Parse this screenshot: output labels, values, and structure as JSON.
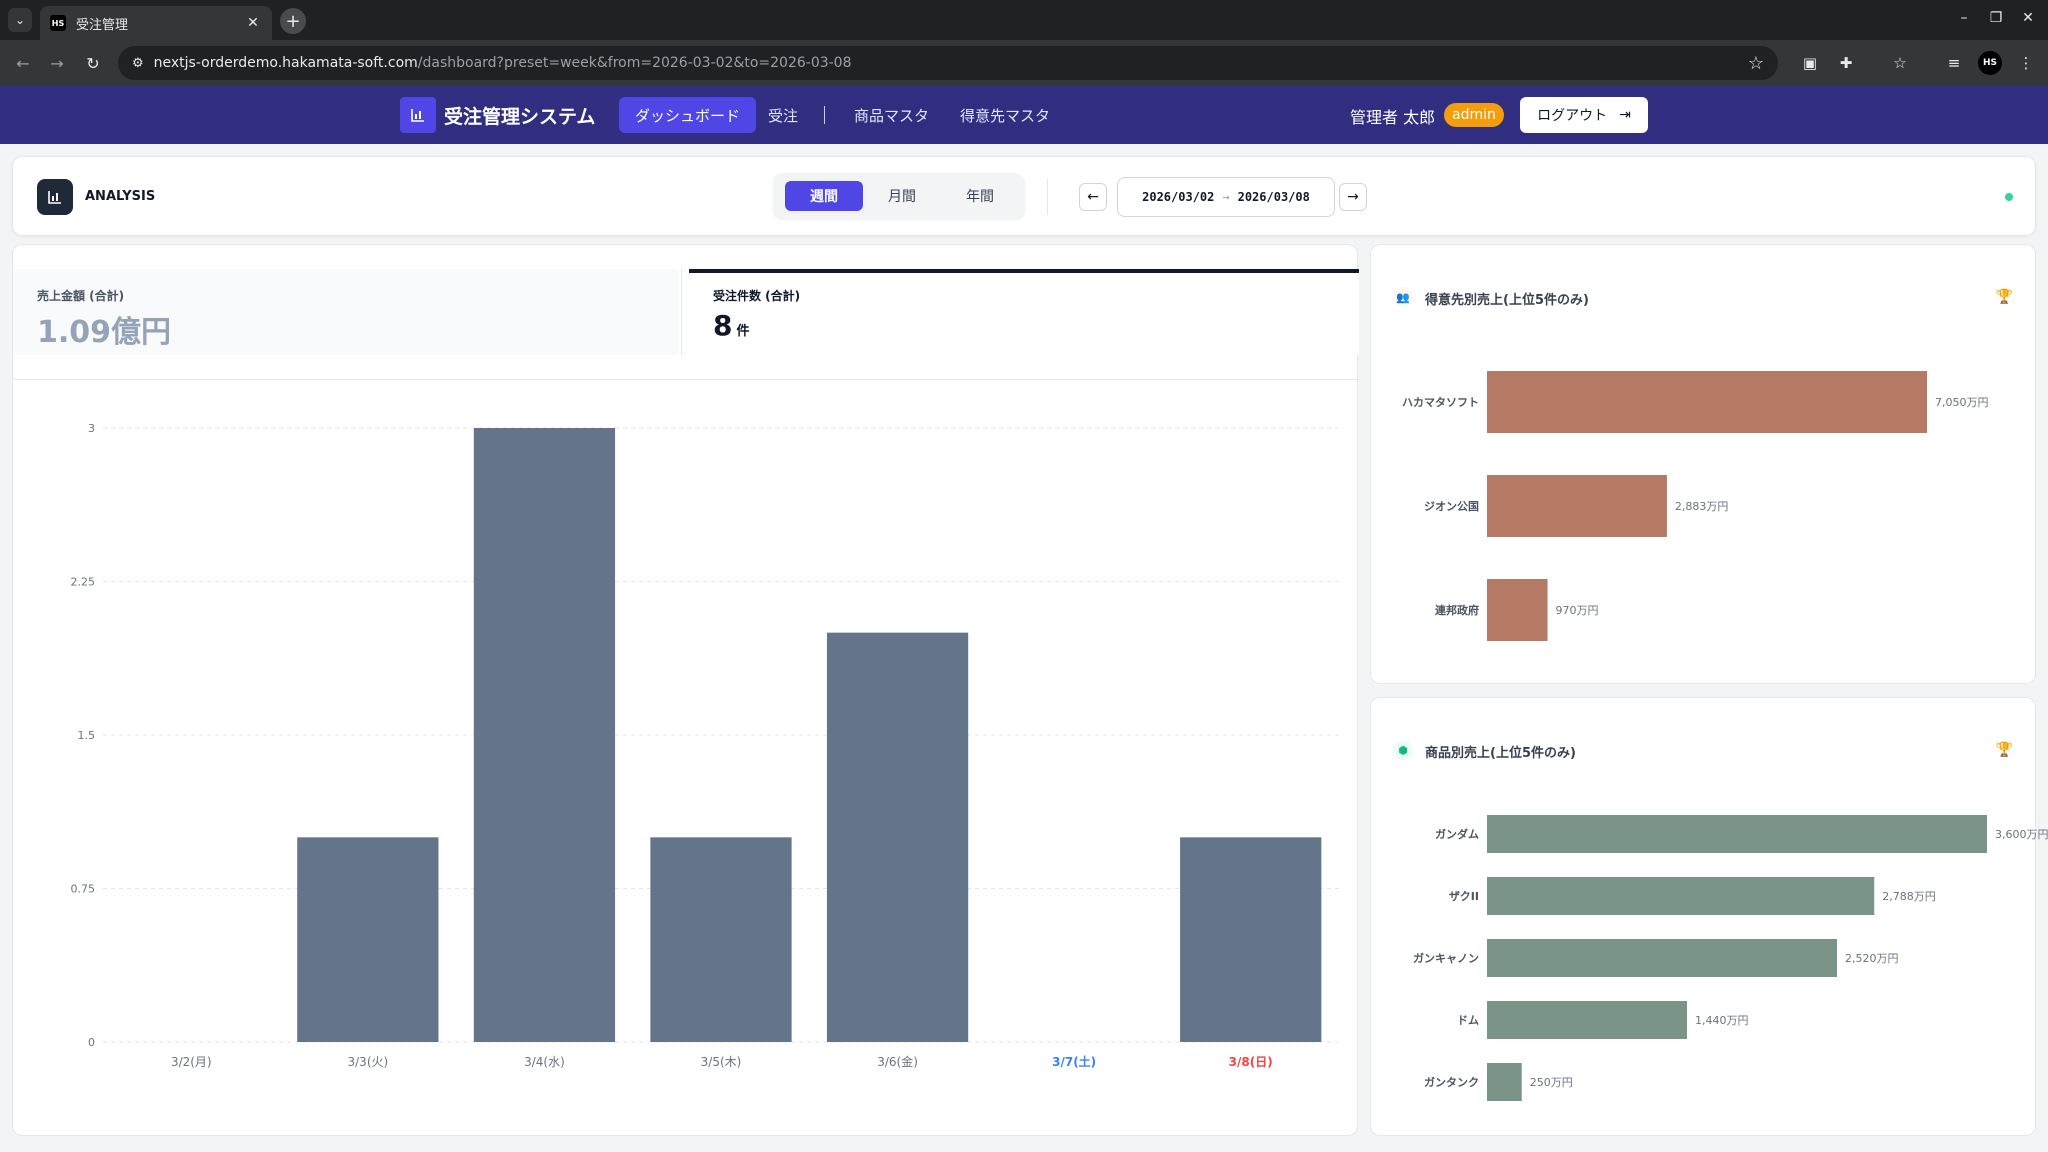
{
  "browser": {
    "tab_title": "受注管理",
    "favicon_text": "HS",
    "url_host": "nextjs-orderdemo.hakamata-soft.com",
    "url_path": "/dashboard?preset=week&from=2026-03-02&to=2026-03-08",
    "profile_text": "HS"
  },
  "app": {
    "title": "受注管理システム",
    "nav": [
      "ダッシュボード",
      "受注",
      "商品マスタ",
      "得意先マスタ"
    ],
    "user_name": "管理者 太郎",
    "role_badge": "admin",
    "logout_label": "ログアウト"
  },
  "analysis": {
    "label": "ANALYSIS",
    "periods": [
      "週間",
      "月間",
      "年間"
    ],
    "active_period": "週間",
    "date_from": "2026/03/02",
    "date_to": "2026/03/08"
  },
  "kpi": {
    "sales_label": "売上金額 (合計)",
    "sales_value": "1.09億円",
    "orders_label": "受注件数 (合計)",
    "orders_value": "8",
    "orders_unit": "件"
  },
  "customer_card": {
    "title": "得意先別売上(上位5件のみ)"
  },
  "product_card": {
    "title": "商品別売上(上位5件のみ)"
  },
  "chart_data": [
    {
      "type": "bar",
      "categories": [
        "3/2(月)",
        "3/3(火)",
        "3/4(水)",
        "3/5(木)",
        "3/6(金)",
        "3/7(土)",
        "3/8(日)"
      ],
      "values": [
        0,
        1,
        3,
        1,
        2,
        0,
        1
      ],
      "yticks": [
        "0",
        "0.75",
        "1.5",
        "2.25",
        "3"
      ],
      "ylim": [
        0,
        3
      ],
      "bar_color": "#64748b",
      "weekend_colors": {
        "3/7(土)": "#3b82f6",
        "3/8(日)": "#ef4444"
      },
      "grid": true
    },
    {
      "type": "bar",
      "orientation": "horizontal",
      "categories": [
        "ハカマタソフト",
        "ジオン公国",
        "連邦政府"
      ],
      "values": [
        7050,
        2883,
        970
      ],
      "labels": [
        "7,050万円",
        "2,883万円",
        "970万円"
      ],
      "unit": "万円",
      "bar_color": "#b57a66"
    },
    {
      "type": "bar",
      "orientation": "horizontal",
      "categories": [
        "ガンダム",
        "ザクII",
        "ガンキャノン",
        "ドム",
        "ガンタンク"
      ],
      "values": [
        3600,
        2788,
        2520,
        1440,
        250
      ],
      "labels": [
        "3,600万円",
        "2,788万円",
        "2,520万円",
        "1,440万円",
        "250万円"
      ],
      "unit": "万円",
      "bar_color": "#7a9488"
    }
  ]
}
